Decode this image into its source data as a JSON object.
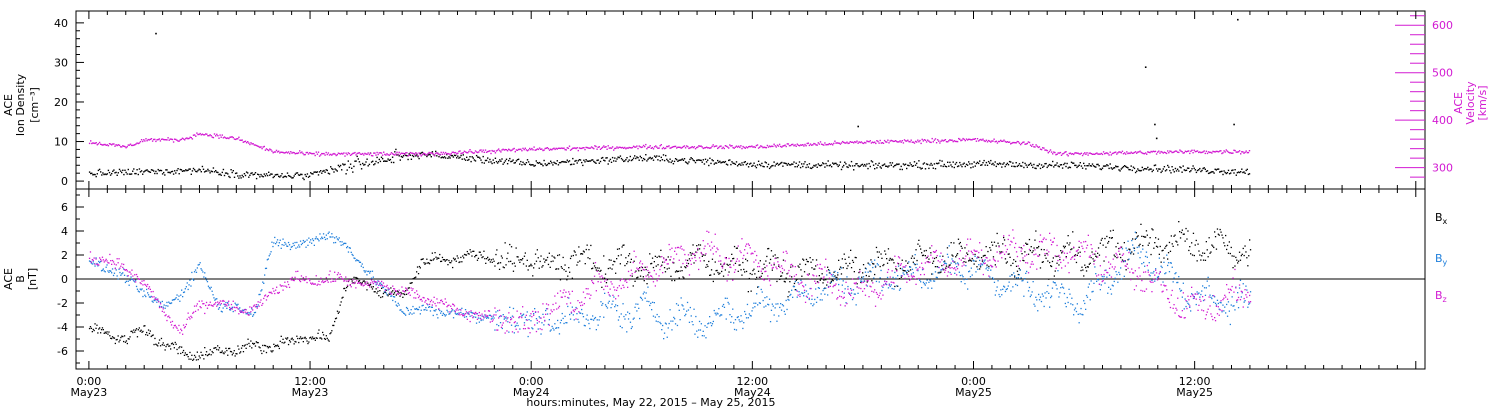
{
  "chart_data": [
    {
      "type": "scatter",
      "panel": "top",
      "ylabel_left": [
        "ACE",
        "Ion Density",
        "[cm⁻³]"
      ],
      "ylabel_right": [
        "ACE",
        "Velocity",
        "[km/s]"
      ],
      "ylim_left": [
        -2,
        43
      ],
      "ylim_right": [
        255,
        630
      ],
      "yticks_left": [
        0,
        10,
        20,
        30,
        40
      ],
      "yticks_right": [
        300,
        400,
        500,
        600
      ],
      "series": [
        {
          "name": "",
          "axis": "left",
          "color": "#000000",
          "x_hours": [
            0,
            6,
            8,
            10,
            12,
            15,
            18,
            24,
            30,
            36,
            42,
            48,
            54,
            60,
            63
          ],
          "values": [
            2,
            3,
            2,
            1.5,
            1.5,
            5,
            7,
            4.5,
            6,
            4.5,
            4,
            4.5,
            4,
            3,
            2.5
          ],
          "outliers": [
            [
              3.6,
              37.5
            ],
            [
              41.7,
              14
            ],
            [
              57.3,
              29
            ],
            [
              57.8,
              14.5
            ],
            [
              57.9,
              11
            ],
            [
              62.1,
              14.5
            ],
            [
              62.3,
              41
            ]
          ]
        },
        {
          "name": "",
          "axis": "right",
          "color": "#d21ad2",
          "x_hours": [
            0,
            2,
            3,
            5,
            6,
            8,
            10,
            12,
            18,
            24,
            30,
            36,
            42,
            48,
            51,
            52.5,
            60,
            63
          ],
          "values": [
            355,
            345,
            360,
            360,
            373,
            362,
            335,
            330,
            330,
            340,
            345,
            345,
            355,
            360,
            352,
            330,
            335,
            335
          ]
        }
      ]
    },
    {
      "type": "scatter",
      "panel": "bottom",
      "ylabel": [
        "ACE",
        "B",
        "[nT]"
      ],
      "ylim": [
        -7.5,
        7.5
      ],
      "yticks": [
        -6,
        -4,
        -2,
        0,
        2,
        4,
        6
      ],
      "zero_line": true,
      "series": [
        {
          "name": "Bx",
          "color": "#000000",
          "x_hours": [
            0,
            1,
            2,
            3,
            4,
            5,
            6,
            7,
            8,
            9,
            10,
            11,
            12,
            13,
            14,
            15,
            16,
            17,
            18,
            21,
            24,
            27,
            30,
            33,
            36,
            39,
            42,
            45,
            48,
            51,
            54,
            57,
            60,
            63
          ],
          "values": [
            -4,
            -4.5,
            -5,
            -4,
            -5.5,
            -6,
            -6.5,
            -5.8,
            -6,
            -5.5,
            -5.5,
            -5,
            -4.8,
            -5,
            0,
            -0.5,
            -1,
            -1.5,
            1.5,
            2,
            1.5,
            1.5,
            1,
            1.5,
            1,
            0.5,
            1,
            1.5,
            2,
            2,
            2,
            3,
            3,
            2.5
          ]
        },
        {
          "name": "By",
          "color": "#1f7fdb",
          "x_hours": [
            0,
            1,
            2,
            3,
            4,
            5,
            6,
            7,
            8,
            9,
            10,
            11,
            12,
            13,
            14,
            15,
            16,
            17,
            18,
            21,
            24,
            27,
            30,
            33,
            36,
            39,
            42,
            45,
            48,
            51,
            54,
            57,
            60,
            63
          ],
          "values": [
            1.5,
            1,
            0,
            -1,
            -2.5,
            -1,
            1,
            -2,
            -2.5,
            -2.5,
            3,
            3,
            3,
            4,
            2.5,
            1,
            -1,
            -2.5,
            -2.5,
            -3,
            -3.5,
            -3,
            -2.5,
            -3.5,
            -2.5,
            -1,
            0,
            0.5,
            1,
            -1,
            -1.5,
            2.5,
            -1.5,
            -2
          ]
        },
        {
          "name": "Bz",
          "color": "#d21ad2",
          "x_hours": [
            0,
            1,
            2,
            3,
            4,
            5,
            6,
            7,
            8,
            9,
            10,
            11,
            12,
            13,
            14,
            15,
            16,
            17,
            18,
            21,
            24,
            27,
            30,
            33,
            36,
            39,
            42,
            45,
            48,
            51,
            54,
            57,
            60,
            63
          ],
          "values": [
            2,
            1.5,
            1,
            -0.5,
            -2.5,
            -4.5,
            -2,
            -2,
            -2.5,
            -2.5,
            -1,
            0,
            0,
            0,
            0,
            -0.5,
            -0.5,
            -1,
            -1.5,
            -3,
            -3.5,
            -1,
            0.5,
            2.5,
            1.5,
            0,
            -1,
            1,
            2,
            2.5,
            2,
            0.5,
            -2.5,
            -1
          ]
        }
      ]
    }
  ],
  "xaxis": {
    "ticks": [
      {
        "hours": 0,
        "time": "0:00",
        "date": "May23"
      },
      {
        "hours": 12,
        "time": "12:00",
        "date": "May23"
      },
      {
        "hours": 24,
        "time": "0:00",
        "date": "May24"
      },
      {
        "hours": 36,
        "time": "12:00",
        "date": "May24"
      },
      {
        "hours": 48,
        "time": "0:00",
        "date": "May25"
      },
      {
        "hours": 60,
        "time": "12:00",
        "date": "May25"
      }
    ],
    "label": "hours:minutes, May 22, 2015 – May 25, 2015",
    "range_hours": [
      -0.7,
      72.5
    ],
    "minor_step_hours": 1
  },
  "legend": [
    {
      "base": "B",
      "sub": "x",
      "color": "#000000"
    },
    {
      "base": "B",
      "sub": "y",
      "color": "#1f7fdb"
    },
    {
      "base": "B",
      "sub": "z",
      "color": "#d21ad2"
    }
  ]
}
